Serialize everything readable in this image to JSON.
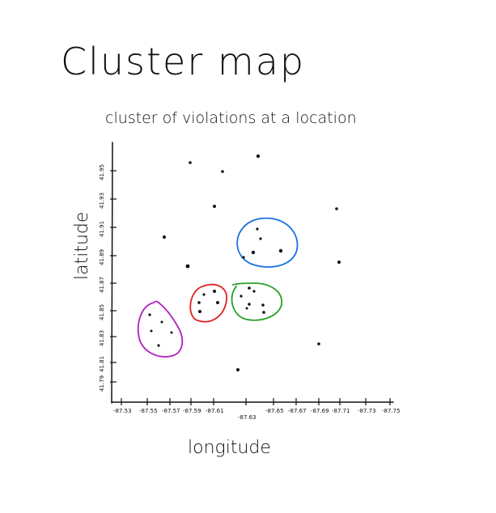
{
  "title": "Cluster map",
  "subtitle": "cluster of violations at a location",
  "axes": {
    "x_label": "longitude",
    "y_label": "latitude",
    "x_ticks": [
      "-87.53",
      "-87.55",
      "-87.57",
      "-87.59",
      "-87.61",
      "-87.63",
      "-87.65",
      "-87.67",
      "-87.69",
      "-87.71",
      "-87.73",
      "-87.75"
    ],
    "y_ticks": [
      "41.79",
      "41.81",
      "41.83",
      "41.85",
      "41.87",
      "41.89",
      "41.91",
      "41.93",
      "41.95"
    ]
  },
  "clusters": [
    {
      "color": "#1a6fe0",
      "label": "blue cluster"
    },
    {
      "color": "#e02020",
      "label": "red cluster"
    },
    {
      "color": "#2aa02a",
      "label": "green cluster"
    },
    {
      "color": "#b020c0",
      "label": "purple cluster"
    }
  ]
}
